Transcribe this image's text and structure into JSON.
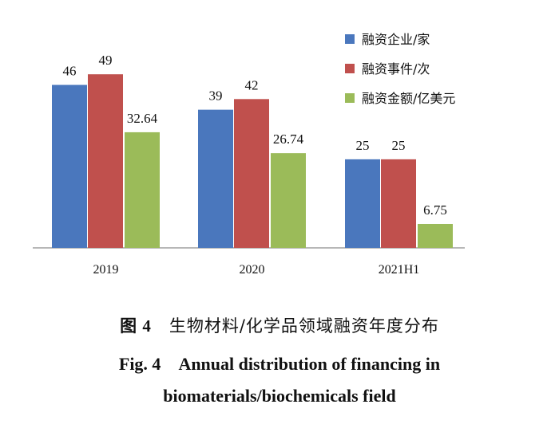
{
  "chart_data": {
    "type": "bar",
    "categories": [
      "2019",
      "2020",
      "2021H1"
    ],
    "series": [
      {
        "name": "融资企业/家",
        "values": [
          46,
          39,
          25
        ],
        "color": "#4a77bd"
      },
      {
        "name": "融资事件/次",
        "values": [
          49,
          42,
          25
        ],
        "color": "#c0504d"
      },
      {
        "name": "融资金额/亿美元",
        "values": [
          32.64,
          26.74,
          6.75
        ],
        "color": "#9bbb59"
      }
    ],
    "data_labels": [
      [
        "46",
        "39",
        "25"
      ],
      [
        "49",
        "42",
        "25"
      ],
      [
        "32.64",
        "26.74",
        "6.75"
      ]
    ],
    "ylim": [
      0,
      55
    ],
    "grid": false,
    "legend_position": "top-right"
  },
  "caption": {
    "cn_fig": "图 4",
    "cn_title": "生物材料/化学品领域融资年度分布",
    "en_fig": "Fig. 4",
    "en_line1": "Annual distribution of financing in",
    "en_line2": "biomaterials/biochemicals field"
  }
}
